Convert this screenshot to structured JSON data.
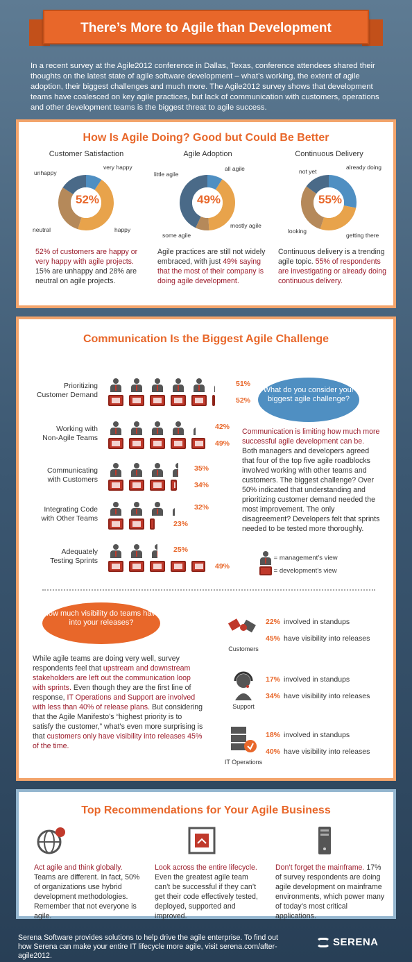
{
  "header": {
    "title": "There’s More to Agile than Development"
  },
  "intro": "In a recent survey at the Agile2012 conference in Dallas, Texas, conference attendees shared their thoughts on the latest state of agile software development – what’s working, the extent of agile adoption, their biggest challenges and much more.  The Agile2012 survey shows that development teams have coalesced on key agile practices, but lack of communication with customers, operations and other development teams is the biggest threat to agile success.",
  "section1": {
    "title": "How Is Agile Doing? Good but Could Be Better",
    "charts": [
      {
        "title": "Customer Satisfaction",
        "pct": "52%",
        "labels": [
          "very happy",
          "happy",
          "neutral",
          "unhappy"
        ],
        "desc_hl": "52% of customers are happy or very happy with agile projects.",
        "desc_rest": " 15% are unhappy and 28% are neutral on agile projects."
      },
      {
        "title": "Agile Adoption",
        "pct": "49%",
        "labels": [
          "all agile",
          "mostly agile",
          "some agile",
          "little agile"
        ],
        "desc_pre": "Agile practices are still not widely embraced, with just ",
        "desc_hl": "49% saying that the most of their company is doing agile development."
      },
      {
        "title": "Continuous Delivery",
        "pct": "55%",
        "labels": [
          "already doing",
          "getting there",
          "looking",
          "not yet"
        ],
        "desc_pre": "Continuous delivery is a trending agile topic. ",
        "desc_hl": "55% of respondents are investigating or already doing continuous delivery."
      }
    ]
  },
  "chart_data": [
    {
      "type": "pie",
      "title": "Customer Satisfaction",
      "categories": [
        "very happy",
        "happy",
        "neutral",
        "unhappy"
      ],
      "values": [
        9,
        43,
        28,
        15
      ]
    },
    {
      "type": "pie",
      "title": "Agile Adoption",
      "categories": [
        "all agile",
        "mostly agile",
        "some agile",
        "little agile"
      ],
      "values": [
        9,
        40,
        8,
        43
      ]
    },
    {
      "type": "pie",
      "title": "Continuous Delivery",
      "categories": [
        "already doing",
        "getting there",
        "looking",
        "not yet"
      ],
      "values": [
        28,
        27,
        30,
        15
      ]
    }
  ],
  "section2": {
    "title": "Communication Is the Biggest Agile Challenge",
    "rows": [
      {
        "label1": "Prioritizing",
        "label2": "Customer Demand",
        "mgmt": 51,
        "dev": 52,
        "mgmt_pct": "51%",
        "dev_pct": "52%"
      },
      {
        "label1": "Working with",
        "label2": "Non-Agile Teams",
        "mgmt": 42,
        "dev": 49,
        "mgmt_pct": "42%",
        "dev_pct": "49%"
      },
      {
        "label1": "Communicating",
        "label2": "with Customers",
        "mgmt": 35,
        "dev": 34,
        "mgmt_pct": "35%",
        "dev_pct": "34%"
      },
      {
        "label1": "Integrating Code",
        "label2": "with Other Teams",
        "mgmt": 32,
        "dev": 23,
        "mgmt_pct": "32%",
        "dev_pct": "23%"
      },
      {
        "label1": "Adequately",
        "label2": "Testing Sprints",
        "mgmt": 25,
        "dev": 49,
        "mgmt_pct": "25%",
        "dev_pct": "49%"
      }
    ],
    "bubble": "What do you consider your biggest agile challenge?",
    "text_hl": "Communication is limiting how much more successful agile development can be.",
    "text_rest": "  Both managers and developers agreed that four of the top five agile roadblocks involved working with other teams and customers.  The biggest challenge?  Over 50% indicated that understanding and prioritizing customer demand needed the most improvement.  The only disagreement? Developers felt that sprints needed to be tested more thoroughly.",
    "legend_mgmt": "= management’s view",
    "legend_dev": "= development’s view",
    "bubble2": "How much visibility do teams have into your releases?",
    "vis_text": {
      "p1": "While agile teams are doing very well, survey respondents feel that ",
      "h1": "upstream and downstream stakeholders are left out the communication loop with sprints.",
      "p2": "  Even though they are the first line of response, ",
      "h2": "IT Operations and Support are involved with less than 40% of release plans.",
      "p3": "  But considering that the Agile Manifesto’s “highest priority is to satisfy the customer,” what’s even more surprising is that ",
      "h3": "customers only have visibility into releases 45% of the time."
    },
    "visibility": [
      {
        "name": "Customers",
        "standups_pct": "22%",
        "standups": "involved in standups",
        "release_pct": "45%",
        "release": "have visibility into releases"
      },
      {
        "name": "Support",
        "standups_pct": "17%",
        "standups": "involved in standups",
        "release_pct": "34%",
        "release": "have visibility into releases"
      },
      {
        "name": "IT Operations",
        "standups_pct": "18%",
        "standups": "involved in standups",
        "release_pct": "40%",
        "release": "have visibility into releases"
      }
    ]
  },
  "section3": {
    "title": "Top Recommendations for Your Agile Business",
    "recs": [
      {
        "hl": "Act agile and think globally.",
        "rest": " Teams are different.  In fact, 50% of organizations use hybrid development methodologies. Remember that not everyone is agile."
      },
      {
        "hl": "Look across the entire lifecycle.",
        "rest": " Even the greatest agile team can’t be successful if they can’t get their code effectively tested, deployed, supported and improved."
      },
      {
        "hl": "Don’t forget the mainframe.",
        "rest": " 17% of survey respondents are doing agile development on mainframe environments, which power many of today’s most critical applications."
      }
    ]
  },
  "footer": {
    "text": "Serena Software provides solutions to help drive the agile enterprise. To find out how Serena can make your entire IT lifecycle more agile, visit serena.com/after-agile2012.",
    "logo": "SERENA"
  },
  "colors": {
    "orange": "#e8672a",
    "blue": "#4f8fc2",
    "slate": "#4a6a88",
    "tan": "#b5895a",
    "crimson": "#9b1c2b"
  }
}
